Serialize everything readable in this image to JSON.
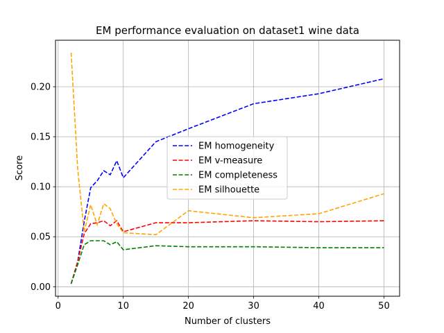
{
  "chart_data": {
    "type": "line",
    "title": "EM performance evaluation on dataset1 wine data",
    "xlabel": "Number of clusters",
    "ylabel": "Score",
    "xlim": [
      -0.4,
      52.4
    ],
    "ylim": [
      -0.0095,
      0.2465
    ],
    "xticks": [
      0,
      10,
      20,
      30,
      40,
      50
    ],
    "yticks": [
      0.0,
      0.05,
      0.1,
      0.15,
      0.2
    ],
    "ytick_labels": [
      "0.00",
      "0.05",
      "0.10",
      "0.15",
      "0.20"
    ],
    "grid": true,
    "legend_position": "center-right",
    "x": [
      2,
      3,
      4,
      5,
      6,
      7,
      8,
      9,
      10,
      15,
      20,
      30,
      40,
      50
    ],
    "series": [
      {
        "name": "EM homogeneity",
        "color": "#0000ff",
        "values": [
          0.003,
          0.025,
          0.065,
          0.099,
          0.106,
          0.116,
          0.112,
          0.126,
          0.109,
          0.145,
          0.158,
          0.183,
          0.193,
          0.208
        ]
      },
      {
        "name": "EM v-measure",
        "color": "#ff0000",
        "values": [
          0.003,
          0.025,
          0.053,
          0.063,
          0.064,
          0.066,
          0.061,
          0.066,
          0.055,
          0.064,
          0.064,
          0.066,
          0.065,
          0.066
        ]
      },
      {
        "name": "EM completeness",
        "color": "#008000",
        "values": [
          0.003,
          0.022,
          0.042,
          0.046,
          0.046,
          0.046,
          0.042,
          0.045,
          0.037,
          0.041,
          0.04,
          0.04,
          0.039,
          0.039
        ]
      },
      {
        "name": "EM silhouette",
        "color": "#ffa500",
        "values": [
          0.234,
          0.118,
          0.055,
          0.082,
          0.062,
          0.083,
          0.078,
          0.063,
          0.054,
          0.052,
          0.076,
          0.069,
          0.073,
          0.093
        ]
      }
    ]
  }
}
